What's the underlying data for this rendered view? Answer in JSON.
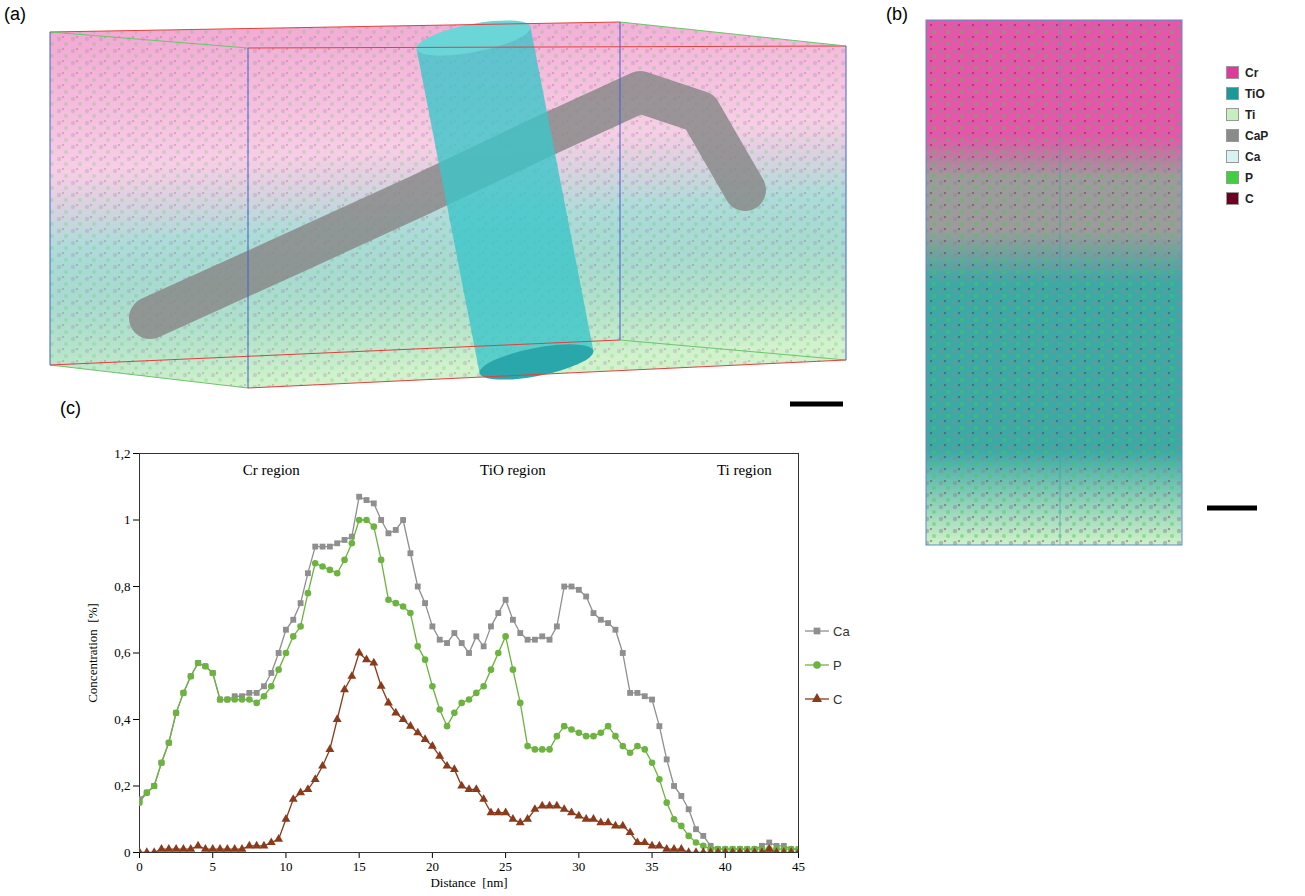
{
  "panels": [
    {
      "label": "(a)"
    },
    {
      "label": "(b)",
      "legend": [
        {
          "name": "Cr",
          "color": "#e0399b"
        },
        {
          "name": "TiO",
          "color": "#1a9a96"
        },
        {
          "name": "Ti",
          "color": "#c6efc0"
        },
        {
          "name": "CaP",
          "color": "#8a8a8a"
        },
        {
          "name": "Ca",
          "color": "#d6f3f3"
        },
        {
          "name": "P",
          "color": "#44cc44"
        },
        {
          "name": "C",
          "color": "#6b0020"
        }
      ]
    },
    {
      "label": "(c)"
    }
  ],
  "chart_data": {
    "type": "line",
    "xlabel": "Distance  [nm]",
    "ylabel": "Concentration  [%]",
    "annotations": [
      {
        "text": "Cr region",
        "x": 9,
        "y": 1.15
      },
      {
        "text": "TiO region",
        "x": 25.5,
        "y": 1.15
      },
      {
        "text": "Ti region",
        "x": 41.3,
        "y": 1.15
      }
    ],
    "x": [
      0,
      0.5,
      1,
      1.5,
      2,
      2.5,
      3,
      3.5,
      4,
      4.5,
      5,
      5.5,
      6,
      6.5,
      7,
      7.5,
      8,
      8.5,
      9,
      9.5,
      10,
      10.5,
      11,
      11.5,
      12,
      12.5,
      13,
      13.5,
      14,
      14.5,
      15,
      15.5,
      16,
      16.5,
      17,
      17.5,
      18,
      18.5,
      19,
      19.5,
      20,
      20.5,
      21,
      21.5,
      22,
      22.5,
      23,
      23.5,
      24,
      24.5,
      25,
      25.5,
      26,
      26.5,
      27,
      27.5,
      28,
      28.5,
      29,
      29.5,
      30,
      30.5,
      31,
      31.5,
      32,
      32.5,
      33,
      33.5,
      34,
      34.5,
      35,
      35.5,
      36,
      36.5,
      37,
      37.5,
      38,
      38.5,
      39,
      39.5,
      40,
      40.5,
      41,
      41.5,
      42,
      42.5,
      43,
      43.5,
      44,
      44.5,
      45
    ],
    "series": [
      {
        "name": "Ca",
        "color": "#8f8f8f",
        "marker": "square",
        "values": [
          0.16,
          0.18,
          0.2,
          0.27,
          0.33,
          0.42,
          0.48,
          0.53,
          0.57,
          0.56,
          0.54,
          0.46,
          0.46,
          0.47,
          0.47,
          0.48,
          0.48,
          0.5,
          0.54,
          0.6,
          0.67,
          0.7,
          0.75,
          0.84,
          0.92,
          0.92,
          0.92,
          0.93,
          0.94,
          0.95,
          1.07,
          1.06,
          1.05,
          1.0,
          0.96,
          0.97,
          1.0,
          0.9,
          0.8,
          0.75,
          0.68,
          0.64,
          0.63,
          0.66,
          0.63,
          0.6,
          0.65,
          0.62,
          0.68,
          0.72,
          0.76,
          0.7,
          0.66,
          0.64,
          0.64,
          0.65,
          0.64,
          0.68,
          0.8,
          0.8,
          0.79,
          0.77,
          0.72,
          0.7,
          0.69,
          0.67,
          0.6,
          0.48,
          0.48,
          0.47,
          0.46,
          0.38,
          0.28,
          0.2,
          0.17,
          0.13,
          0.07,
          0.05,
          0.02,
          0.01,
          0.01,
          0.01,
          0.01,
          0.01,
          0.01,
          0.02,
          0.03,
          0.02,
          0.02,
          0.01,
          0.01
        ]
      },
      {
        "name": "P",
        "color": "#6cb33f",
        "marker": "circle",
        "values": [
          0.15,
          0.18,
          0.2,
          0.27,
          0.33,
          0.42,
          0.48,
          0.53,
          0.57,
          0.56,
          0.54,
          0.46,
          0.46,
          0.46,
          0.46,
          0.46,
          0.45,
          0.47,
          0.5,
          0.55,
          0.6,
          0.65,
          0.68,
          0.78,
          0.87,
          0.86,
          0.85,
          0.84,
          0.88,
          0.93,
          1.0,
          1.0,
          0.98,
          0.88,
          0.76,
          0.75,
          0.74,
          0.72,
          0.62,
          0.58,
          0.5,
          0.43,
          0.38,
          0.42,
          0.45,
          0.46,
          0.48,
          0.5,
          0.55,
          0.6,
          0.65,
          0.55,
          0.45,
          0.32,
          0.31,
          0.31,
          0.31,
          0.35,
          0.38,
          0.37,
          0.36,
          0.35,
          0.35,
          0.36,
          0.38,
          0.35,
          0.32,
          0.3,
          0.32,
          0.31,
          0.27,
          0.22,
          0.15,
          0.1,
          0.08,
          0.05,
          0.03,
          0.02,
          0.01,
          0.01,
          0.01,
          0.01,
          0.01,
          0.01,
          0.01,
          0.01,
          0.01,
          0.01,
          0.01,
          0.01,
          0.01
        ]
      },
      {
        "name": "C",
        "color": "#8b3a1a",
        "marker": "triangle",
        "values": [
          0,
          0,
          0,
          0.01,
          0.01,
          0.01,
          0.01,
          0.01,
          0.02,
          0.01,
          0.01,
          0.01,
          0.01,
          0.01,
          0.01,
          0.02,
          0.02,
          0.02,
          0.03,
          0.04,
          0.1,
          0.16,
          0.18,
          0.19,
          0.22,
          0.26,
          0.31,
          0.4,
          0.49,
          0.53,
          0.6,
          0.58,
          0.57,
          0.5,
          0.45,
          0.42,
          0.4,
          0.38,
          0.36,
          0.34,
          0.32,
          0.29,
          0.26,
          0.25,
          0.2,
          0.19,
          0.19,
          0.16,
          0.12,
          0.12,
          0.12,
          0.1,
          0.09,
          0.1,
          0.13,
          0.14,
          0.14,
          0.14,
          0.13,
          0.12,
          0.11,
          0.1,
          0.1,
          0.09,
          0.09,
          0.08,
          0.08,
          0.06,
          0.03,
          0.03,
          0.02,
          0.02,
          0.01,
          0.01,
          0.01,
          0,
          0,
          0,
          0,
          0,
          0,
          0,
          0,
          0,
          0,
          0,
          0.01,
          0,
          0,
          0,
          0
        ]
      }
    ],
    "xlim": [
      0,
      45
    ],
    "ylim": [
      0,
      1.2
    ],
    "xticks": [
      0,
      5,
      10,
      15,
      20,
      25,
      30,
      35,
      40,
      45
    ],
    "yticks": [
      0,
      {
        "value": 0.2,
        "label": "0,2"
      },
      {
        "value": 0.4,
        "label": "0,4"
      },
      {
        "value": 0.6,
        "label": "0,6"
      },
      {
        "value": 0.8,
        "label": "0,8"
      },
      {
        "value": 1,
        "label": "1"
      },
      {
        "value": 1.2,
        "label": "1,2"
      }
    ],
    "grid": false,
    "legend": "right"
  }
}
